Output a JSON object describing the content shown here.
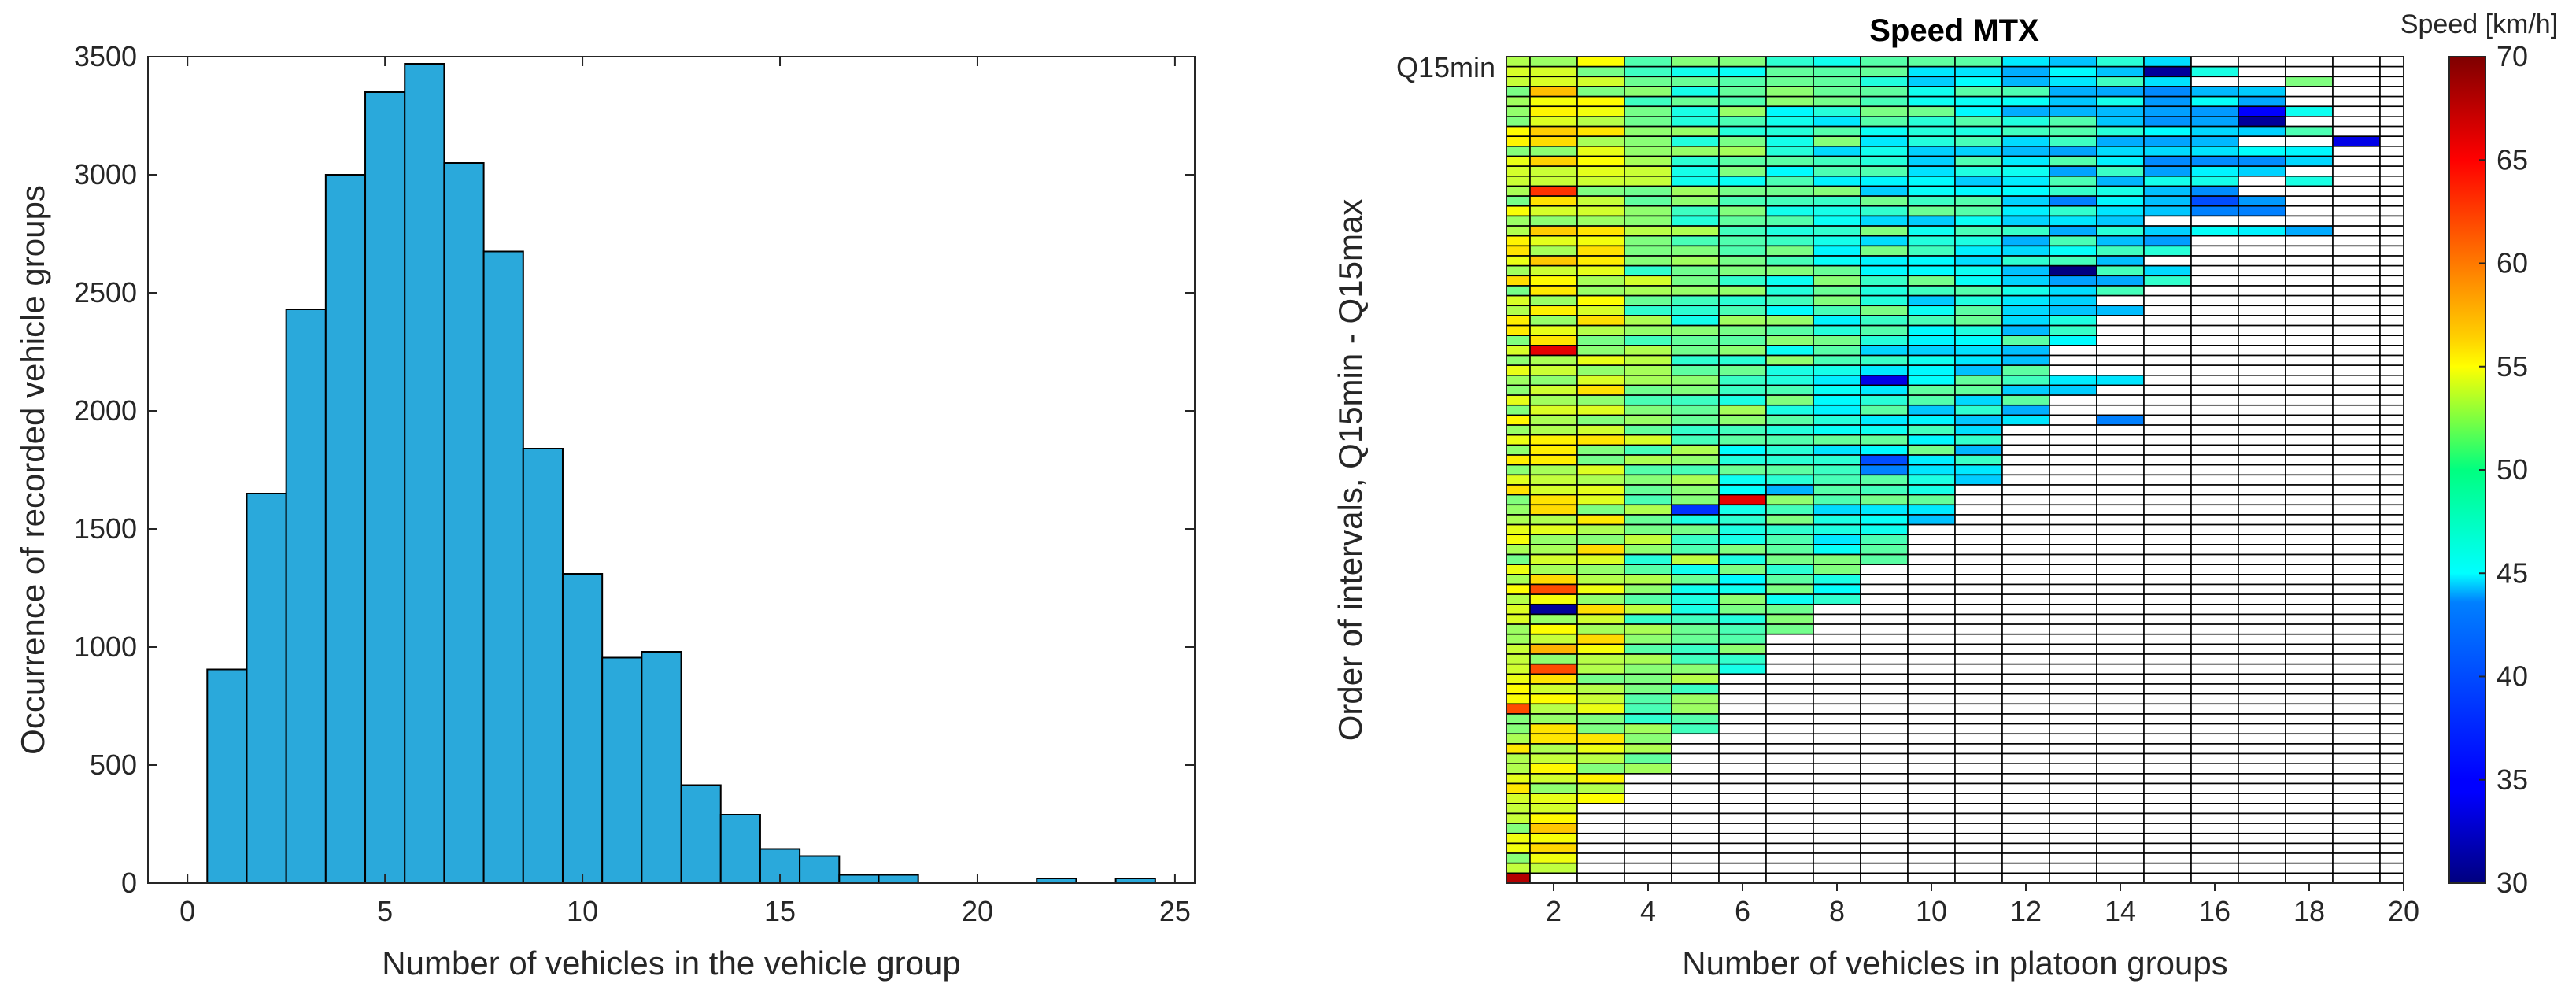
{
  "chart_data": [
    {
      "type": "bar",
      "subtype": "histogram",
      "xlabel": "Number of vehicles in the vehicle group",
      "ylabel": "Occurrence of recorded vehicle groups",
      "xlim": [
        -1,
        25.5
      ],
      "ylim": [
        0,
        3500
      ],
      "x_ticks": [
        0,
        5,
        10,
        15,
        20,
        25
      ],
      "y_ticks": [
        0,
        500,
        1000,
        1500,
        2000,
        2500,
        3000,
        3500
      ],
      "bar_color": "#2aa9db",
      "edge_color": "#000000",
      "bin_width": 1,
      "x": [
        1,
        2,
        3,
        4,
        5,
        6,
        7,
        8,
        9,
        10,
        11,
        12,
        13,
        14,
        15,
        16,
        17,
        18,
        19,
        20,
        21,
        22,
        23,
        24
      ],
      "values": [
        905,
        1650,
        2430,
        3000,
        3350,
        3470,
        3050,
        2675,
        1840,
        1310,
        955,
        980,
        415,
        290,
        145,
        115,
        35,
        35,
        0,
        0,
        0,
        20,
        0,
        20
      ],
      "grid": false
    },
    {
      "type": "heatmap",
      "title": "Speed MTX",
      "xlabel": "Number of vehicles in platoon groups",
      "ylabel": "Order of intervals, Q15min - Q15max",
      "y_top_label": "Q15min",
      "x_ticks": [
        2,
        4,
        6,
        8,
        10,
        12,
        14,
        16,
        18,
        20
      ],
      "xlim": [
        1,
        20
      ],
      "n_rows": 83,
      "colorbar": {
        "title": "Speed [km/h]",
        "range": [
          30,
          70
        ],
        "ticks": [
          30,
          35,
          40,
          45,
          50,
          55,
          60,
          65,
          70
        ],
        "colormap": "jet"
      },
      "empty_color": "#ffffff",
      "grid_color": "#000000",
      "row_lengths": [
        15,
        15,
        15,
        17,
        17,
        18,
        17,
        17,
        16,
        18,
        18,
        17,
        16,
        16,
        16,
        17,
        14,
        18,
        15,
        15,
        14,
        15,
        15,
        14,
        13,
        14,
        13,
        13,
        13,
        12,
        12,
        12,
        13,
        13,
        12,
        12,
        12,
        11,
        11,
        11,
        11,
        11,
        11,
        10,
        10,
        10,
        10,
        9,
        9,
        9,
        9,
        8,
        8,
        8,
        8,
        7,
        7,
        7,
        6,
        6,
        6,
        6,
        5,
        5,
        5,
        5,
        5,
        5,
        4,
        4,
        4,
        4,
        3,
        3,
        3,
        2,
        2,
        2,
        2,
        2,
        2,
        2,
        1
      ],
      "special_cells": [
        {
          "row": 1,
          "col": 14,
          "speed": 31
        },
        {
          "row": 1,
          "col": 15,
          "speed": 46
        },
        {
          "row": 2,
          "col": 17,
          "speed": 50
        },
        {
          "row": 3,
          "col": 16,
          "speed": 43
        },
        {
          "row": 5,
          "col": 16,
          "speed": 35
        },
        {
          "row": 6,
          "col": 16,
          "speed": 31
        },
        {
          "row": 7,
          "col": 17,
          "speed": 48
        },
        {
          "row": 8,
          "col": 18,
          "speed": 34
        },
        {
          "row": 9,
          "col": 15,
          "speed": 44
        },
        {
          "row": 12,
          "col": 17,
          "speed": 46
        },
        {
          "row": 13,
          "col": 1,
          "speed": 63
        },
        {
          "row": 14,
          "col": 15,
          "speed": 38
        },
        {
          "row": 14,
          "col": 16,
          "speed": 41
        },
        {
          "row": 14,
          "col": 12,
          "speed": 40
        },
        {
          "row": 17,
          "col": 1,
          "speed": 57
        },
        {
          "row": 21,
          "col": 12,
          "speed": 30
        },
        {
          "row": 29,
          "col": 1,
          "speed": 66
        },
        {
          "row": 32,
          "col": 8,
          "speed": 34
        },
        {
          "row": 32,
          "col": 13,
          "speed": 44
        },
        {
          "row": 36,
          "col": 13,
          "speed": 40
        },
        {
          "row": 40,
          "col": 8,
          "speed": 38
        },
        {
          "row": 41,
          "col": 8,
          "speed": 40
        },
        {
          "row": 43,
          "col": 6,
          "speed": 42
        },
        {
          "row": 44,
          "col": 5,
          "speed": 66
        },
        {
          "row": 45,
          "col": 4,
          "speed": 37
        },
        {
          "row": 53,
          "col": 1,
          "speed": 62
        },
        {
          "row": 55,
          "col": 1,
          "speed": 31
        },
        {
          "row": 59,
          "col": 1,
          "speed": 58
        },
        {
          "row": 61,
          "col": 1,
          "speed": 62
        },
        {
          "row": 62,
          "col": 1,
          "speed": 56
        },
        {
          "row": 65,
          "col": 0,
          "speed": 62
        },
        {
          "row": 82,
          "col": 0,
          "speed": 68
        }
      ]
    }
  ]
}
